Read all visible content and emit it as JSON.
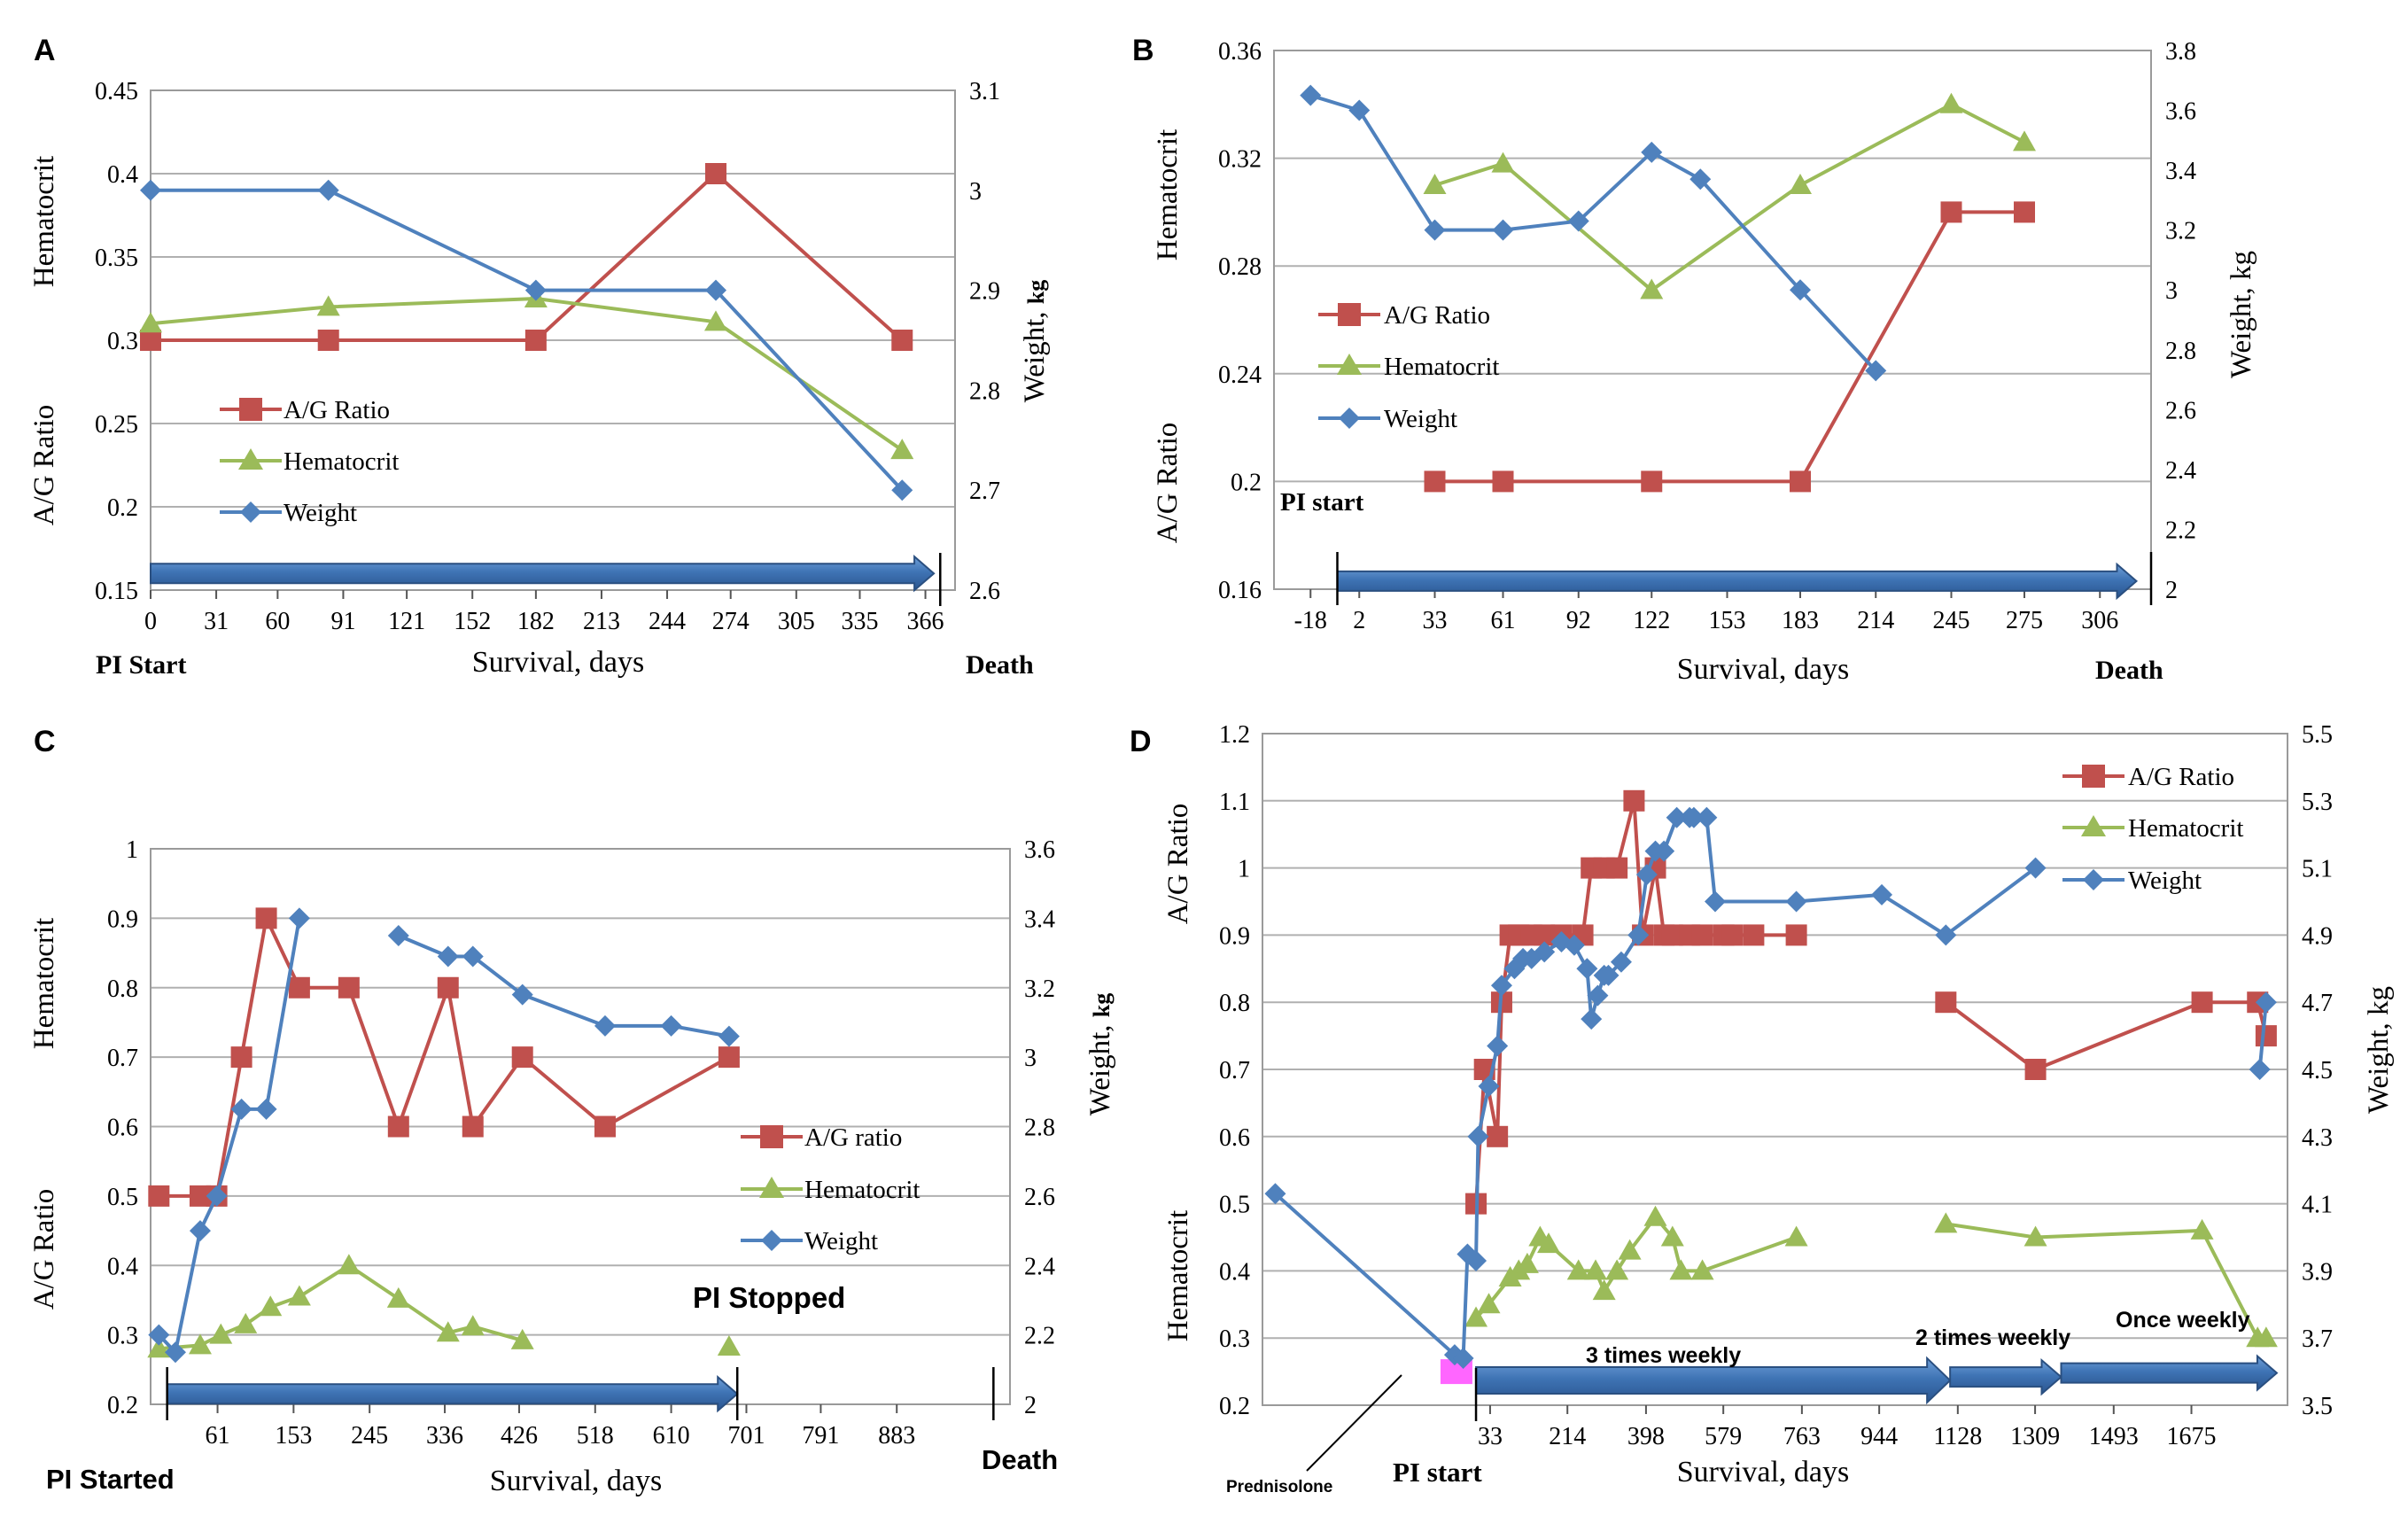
{
  "colors": {
    "ag": "#c0504d",
    "hct": "#9bbb59",
    "weight": "#4f81bd",
    "arrow_fill": "#3f74b5",
    "arrow_stroke": "#2a4f80",
    "grid": "#b0b0b0",
    "frame": "#9a9a9a",
    "prednisolone": "#ff66ff"
  },
  "chart_data": [
    {
      "panel": "A",
      "type": "line",
      "xlabel": "Survival, days",
      "ylabel_top": "Hematocrit",
      "ylabel_bottom": "A/G Ratio",
      "ylabel_right": "Weight, ",
      "ylabel_right_unit": "kg",
      "xlim": [
        0,
        380
      ],
      "ylim": [
        0.15,
        0.45
      ],
      "ylim_right": [
        2.6,
        3.1
      ],
      "x_ticks": [
        0,
        31,
        60,
        91,
        121,
        152,
        182,
        213,
        244,
        274,
        305,
        335,
        366
      ],
      "y_ticks": [
        0.15,
        0.2,
        0.25,
        0.3,
        0.35,
        0.4,
        0.45
      ],
      "y_tick_labels": [
        "0.15",
        "0.2",
        "0.25",
        "0.3",
        "0.35",
        "0.4",
        "0.45"
      ],
      "y2_ticks": [
        2.6,
        2.7,
        2.8,
        2.9,
        3.0,
        3.1
      ],
      "y2_tick_labels": [
        "2.6",
        "2.7",
        "2.8",
        "2.9",
        "3",
        "3.1"
      ],
      "legend": [
        "A/G Ratio",
        "Hematocrit",
        "Weight"
      ],
      "legend_position": "middle-left",
      "series": [
        {
          "name": "A/G Ratio",
          "axis": "left",
          "marker": "square",
          "x": [
            0,
            84,
            182,
            267,
            355
          ],
          "values": [
            0.3,
            0.3,
            0.3,
            0.4,
            0.3
          ]
        },
        {
          "name": "Hematocrit",
          "axis": "left",
          "marker": "triangle",
          "x": [
            0,
            84,
            182,
            267,
            355
          ],
          "values": [
            0.31,
            0.32,
            0.325,
            0.311,
            0.234
          ]
        },
        {
          "name": "Weight",
          "axis": "right",
          "marker": "diamond",
          "x": [
            0,
            84,
            182,
            267,
            355
          ],
          "values": [
            3.0,
            3.0,
            2.9,
            2.9,
            2.7
          ]
        }
      ],
      "arrows": [
        {
          "from": 0,
          "to": 370,
          "at": 0.16
        }
      ],
      "markers": [
        {
          "x": 373,
          "label": ""
        }
      ],
      "annotations": [
        {
          "text": "PI Start",
          "at": "start"
        },
        {
          "text": "Death",
          "at": "end"
        }
      ]
    },
    {
      "panel": "B",
      "type": "line",
      "xlabel": "Survival,  days",
      "ylabel_top": "Hematocrit",
      "ylabel_bottom": "A/G Ratio",
      "ylabel_right": "Weight, kg",
      "ylabel_right_unit": "",
      "xlim": [
        -33,
        327
      ],
      "ylim": [
        0.16,
        0.36
      ],
      "ylim_right": [
        2.0,
        3.8
      ],
      "x_ticks": [
        -18,
        2,
        33,
        61,
        92,
        122,
        153,
        183,
        214,
        245,
        275,
        306
      ],
      "y_ticks": [
        0.16,
        0.2,
        0.24,
        0.28,
        0.32,
        0.36
      ],
      "y_tick_labels": [
        "0.16",
        "0.2",
        "0.24",
        "0.28",
        "0.32",
        "0.36"
      ],
      "y2_ticks": [
        2.0,
        2.2,
        2.4,
        2.6,
        2.8,
        3.0,
        3.2,
        3.4,
        3.6,
        3.8
      ],
      "y2_tick_labels": [
        "2",
        "2.2",
        "2.4",
        "2.6",
        "2.8",
        "3",
        "3.2",
        "3.4",
        "3.6",
        "3.8"
      ],
      "legend": [
        "A/G Ratio",
        "Hematocrit",
        "Weight"
      ],
      "legend_position": "middle-left",
      "series": [
        {
          "name": "A/G Ratio",
          "axis": "left",
          "marker": "square",
          "x": [
            33,
            61,
            122,
            183,
            245,
            275
          ],
          "values": [
            0.2,
            0.2,
            0.2,
            0.2,
            0.3,
            0.3
          ]
        },
        {
          "name": "Hematocrit",
          "axis": "left",
          "marker": "triangle",
          "x": [
            33,
            61,
            122,
            183,
            245,
            275
          ],
          "values": [
            0.31,
            0.318,
            0.271,
            0.31,
            0.34,
            0.326
          ]
        },
        {
          "name": "Weight",
          "axis": "right",
          "marker": "diamond",
          "x": [
            -18,
            2,
            33,
            61,
            92,
            122,
            142,
            183,
            214
          ],
          "values": [
            3.65,
            3.6,
            3.2,
            3.2,
            3.23,
            3.46,
            3.37,
            3.0,
            2.73
          ]
        }
      ],
      "arrows": [
        {
          "from": -7,
          "to": 321,
          "at": 0.163
        }
      ],
      "markers": [
        {
          "x": -7,
          "label": "PI start"
        },
        {
          "x": 327,
          "label": ""
        }
      ],
      "annotations": [
        {
          "text": "Death",
          "at": "end"
        }
      ]
    },
    {
      "panel": "C",
      "type": "line",
      "xlabel": "Survival,  days",
      "ylabel_top": "Hematocrit",
      "ylabel_bottom": "A/G Ratio",
      "ylabel_right": "Weight, ",
      "ylabel_right_unit": "kg",
      "xlim": [
        -20,
        1020
      ],
      "ylim": [
        0.2,
        1.0
      ],
      "ylim_right": [
        2.0,
        3.6
      ],
      "x_ticks": [
        61,
        153,
        245,
        336,
        426,
        518,
        610,
        701,
        791,
        883
      ],
      "y_ticks": [
        0.2,
        0.3,
        0.4,
        0.5,
        0.6,
        0.7,
        0.8,
        0.9,
        1.0
      ],
      "y_tick_labels": [
        "0.2",
        "0.3",
        "0.4",
        "0.5",
        "0.6",
        "0.7",
        "0.8",
        "0.9",
        "1"
      ],
      "y2_ticks": [
        2.0,
        2.2,
        2.4,
        2.6,
        2.8,
        3.0,
        3.2,
        3.4,
        3.6
      ],
      "y2_tick_labels": [
        "2",
        "2.2",
        "2.4",
        "2.6",
        "2.8",
        "3",
        "3.2",
        "3.4",
        "3.6"
      ],
      "legend": [
        "A/G ratio",
        "Hematocrit",
        "Weight"
      ],
      "legend_position": "middle-right",
      "series": [
        {
          "name": "A/G ratio",
          "axis": "left",
          "marker": "square",
          "x": [
            -10,
            40,
            60,
            90,
            120,
            160,
            220,
            280,
            340,
            370,
            430,
            530,
            680
          ],
          "values": [
            0.5,
            0.5,
            0.5,
            0.7,
            0.9,
            0.8,
            0.8,
            0.6,
            0.8,
            0.6,
            0.7,
            0.6,
            0.7
          ]
        },
        {
          "name": "Hematocrit",
          "axis": "left",
          "marker": "triangle",
          "x": [
            -10,
            40,
            65,
            95,
            125,
            160,
            220,
            280,
            340,
            370,
            430
          ],
          "values": [
            0.28,
            0.285,
            0.3,
            0.315,
            0.34,
            0.355,
            0.4,
            0.352,
            0.303,
            0.312,
            0.292
          ]
        },
        {
          "name": "Weight",
          "axis": "right",
          "marker": "diamond",
          "x": [
            -10,
            10,
            40,
            60,
            90,
            120,
            160
          ],
          "values": [
            2.2,
            2.15,
            2.5,
            2.6,
            2.85,
            2.85,
            3.4
          ]
        },
        {
          "name": "Weight",
          "axis": "right",
          "marker": "diamond",
          "x": [
            280,
            340,
            370,
            430,
            530,
            610,
            680
          ],
          "values": [
            3.35,
            3.29,
            3.29,
            3.18,
            3.09,
            3.09,
            3.06
          ]
        },
        {
          "name": "Hematocrit",
          "axis": "left",
          "marker": "triangle",
          "x": [
            680
          ],
          "values": [
            0.283
          ]
        }
      ],
      "arrows": [
        {
          "from": 0,
          "to": 690,
          "at": 0.215
        }
      ],
      "markers": [
        {
          "x": 0,
          "label": ""
        },
        {
          "x": 690,
          "label": ""
        },
        {
          "x": 1000,
          "label": ""
        }
      ],
      "annotations": [
        {
          "text": "PI Stopped",
          "at": "stop"
        },
        {
          "text": "PI Started",
          "at": "start"
        },
        {
          "text": "Death",
          "at": "end"
        }
      ]
    },
    {
      "panel": "D",
      "type": "line",
      "xlabel": "Survival, days",
      "ylabel_top": "A/G Ratio",
      "ylabel_bottom": "Hematocrit",
      "ylabel_right": "Weight, kg",
      "ylabel_right_unit": "",
      "xlim": [
        -500,
        1900
      ],
      "ylim": [
        0.2,
        1.2
      ],
      "ylim_right": [
        3.5,
        5.5
      ],
      "x_ticks": [
        33,
        214,
        398,
        579,
        763,
        944,
        1128,
        1309,
        1493,
        1675
      ],
      "y_ticks": [
        0.2,
        0.3,
        0.4,
        0.5,
        0.6,
        0.7,
        0.8,
        0.9,
        1.0,
        1.1,
        1.2
      ],
      "y_tick_labels": [
        "0.2",
        "0.3",
        "0.4",
        "0.5",
        "0.6",
        "0.7",
        "0.8",
        "0.9",
        "1",
        "1.1",
        "1.2"
      ],
      "y2_ticks": [
        3.5,
        3.7,
        3.9,
        4.1,
        4.3,
        4.5,
        4.7,
        4.9,
        5.1,
        5.3,
        5.5
      ],
      "y2_tick_labels": [
        "3.5",
        "3.7",
        "3.9",
        "4.1",
        "4.3",
        "4.5",
        "4.7",
        "4.9",
        "5.1",
        "5.3",
        "5.5"
      ],
      "legend": [
        "A/G Ratio",
        "Hematocrit",
        "Weight"
      ],
      "legend_position": "top-right",
      "series": [
        {
          "name": "A/G Ratio",
          "axis": "left",
          "marker": "square",
          "x": [
            0,
            20,
            50,
            60,
            80,
            100,
            130,
            160,
            200,
            250,
            270,
            300,
            330,
            370,
            390,
            420,
            440,
            460,
            500,
            530,
            580,
            600,
            650,
            750
          ],
          "values": [
            0.5,
            0.7,
            0.6,
            0.8,
            0.9,
            0.9,
            0.9,
            0.9,
            0.9,
            0.9,
            1.0,
            1.0,
            1.0,
            1.1,
            0.9,
            1.0,
            0.9,
            0.9,
            0.9,
            0.9,
            0.9,
            0.9,
            0.9,
            0.9
          ]
        },
        {
          "name": "A/G Ratio",
          "axis": "left",
          "marker": "square",
          "x": [
            1100,
            1310,
            1700,
            1830,
            1850
          ],
          "values": [
            0.8,
            0.7,
            0.8,
            0.8,
            0.75
          ]
        },
        {
          "name": "Hematocrit",
          "axis": "left",
          "marker": "triangle",
          "x": [
            0,
            30,
            80,
            100,
            120,
            150,
            170,
            240,
            280,
            300,
            330,
            360,
            420,
            460,
            480,
            530,
            750
          ],
          "values": [
            0.33,
            0.35,
            0.39,
            0.4,
            0.41,
            0.45,
            0.44,
            0.4,
            0.4,
            0.37,
            0.4,
            0.43,
            0.48,
            0.45,
            0.4,
            0.4,
            0.45
          ]
        },
        {
          "name": "Hematocrit",
          "axis": "left",
          "marker": "triangle",
          "x": [
            1100,
            1310,
            1700,
            1830,
            1850
          ],
          "values": [
            0.47,
            0.45,
            0.46,
            0.3,
            0.3
          ]
        },
        {
          "name": "Weight",
          "axis": "right",
          "marker": "diamond",
          "x": [
            -470,
            -50,
            -30,
            -20,
            0,
            5,
            30,
            50,
            60,
            90,
            110,
            130,
            160,
            200,
            230,
            260,
            270,
            285,
            300,
            310,
            340,
            380,
            400,
            420,
            440,
            470,
            500,
            510,
            540,
            560,
            750,
            950,
            1100,
            1310
          ],
          "values": [
            4.13,
            3.65,
            3.64,
            3.95,
            3.93,
            4.3,
            4.45,
            4.57,
            4.75,
            4.8,
            4.83,
            4.83,
            4.85,
            4.88,
            4.87,
            4.8,
            4.65,
            4.72,
            4.78,
            4.78,
            4.82,
            4.9,
            5.08,
            5.15,
            5.15,
            5.25,
            5.25,
            5.25,
            5.25,
            5.0,
            5.0,
            5.02,
            4.9,
            5.1
          ]
        },
        {
          "name": "Weight",
          "axis": "right",
          "marker": "diamond",
          "x": [
            1835,
            1850
          ],
          "values": [
            4.5,
            4.7
          ]
        }
      ],
      "arrows": [
        {
          "from": 0,
          "to": 1110,
          "at": 0.237,
          "big": true
        },
        {
          "from": 1110,
          "to": 1370,
          "at": 0.242
        },
        {
          "from": 1370,
          "to": 1875,
          "at": 0.248
        }
      ],
      "markers": [
        {
          "x": 0,
          "label": ""
        }
      ],
      "prednisolone_box": {
        "x": -50,
        "at": 0.25
      },
      "annotations": [
        {
          "text": "3 times weekly",
          "at": "seg1"
        },
        {
          "text": "2 times weekly",
          "at": "seg2"
        },
        {
          "text": "Once weekly",
          "at": "seg3"
        },
        {
          "text": "Prednisolone",
          "at": "leader"
        },
        {
          "text": "PI start",
          "at": "start"
        }
      ]
    }
  ]
}
